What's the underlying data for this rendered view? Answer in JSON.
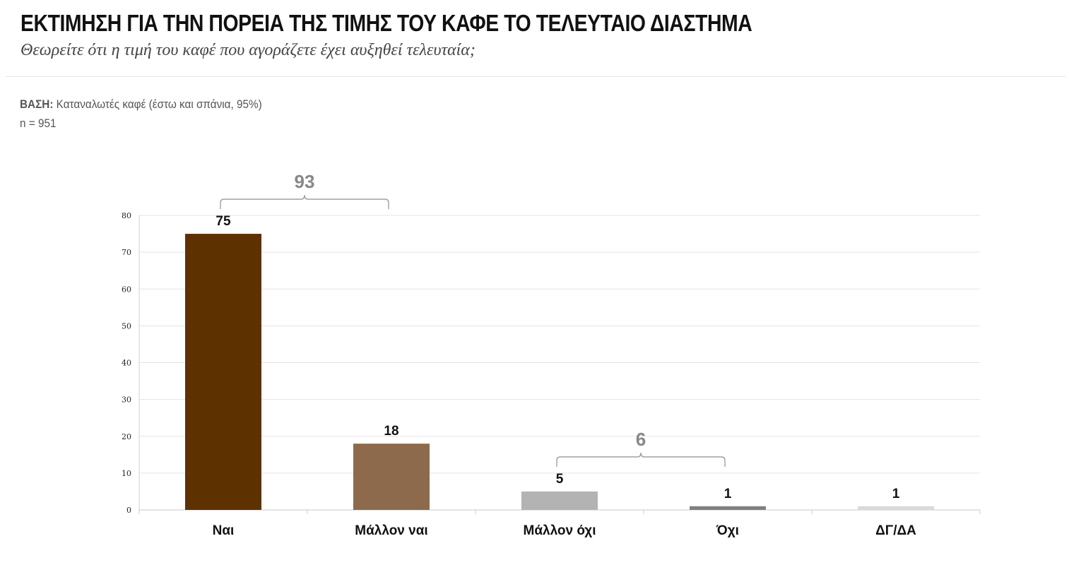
{
  "header": {
    "title": "ΕΚΤΙΜΗΣΗ ΓΙΑ ΤΗΝ ΠΟΡΕΙΑ ΤΗΣ ΤΙΜΗΣ ΤΟΥ ΚΑΦΕ ΤΟ ΤΕΛΕΥΤΑΙΟ ΔΙΑΣΤΗΜΑ",
    "subtitle": "Θεωρείτε ότι η τιμή του καφέ που αγοράζετε έχει αυξηθεί τελευταία;"
  },
  "base": {
    "label": "ΒΑΣΗ:",
    "text": " Καταναλωτές καφέ (έστω και σπάνια, 95%)",
    "n": "n = 951"
  },
  "chart_data": {
    "type": "bar",
    "categories": [
      "Ναι",
      "Μάλλον ναι",
      "Μάλλον όχι",
      "Όχι",
      "ΔΓ/ΔΑ"
    ],
    "values": [
      75,
      18,
      5,
      1,
      1
    ],
    "value_labels": [
      "75",
      "18",
      "5",
      "1",
      "1"
    ],
    "colors": [
      "#5e3100",
      "#8c6a4b",
      "#b3b3b3",
      "#808080",
      "#d9d9d9"
    ],
    "ylim": [
      0,
      80
    ],
    "yticks": [
      0,
      10,
      20,
      30,
      40,
      50,
      60,
      70,
      80
    ],
    "grid": true,
    "brackets": [
      {
        "label": "93",
        "from": 0,
        "to": 1
      },
      {
        "label": "6",
        "from": 2,
        "to": 3
      }
    ]
  }
}
